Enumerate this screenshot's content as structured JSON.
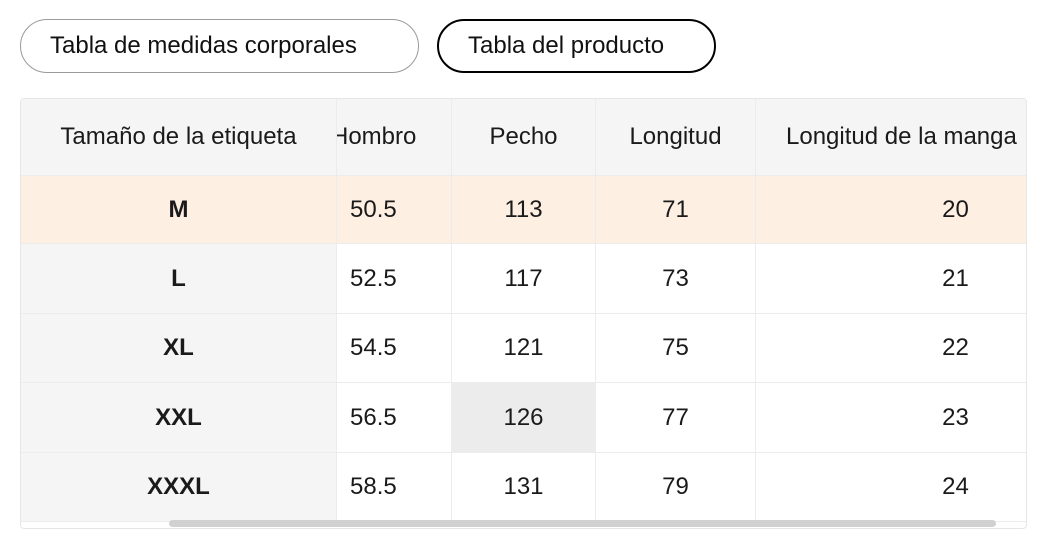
{
  "tabs": {
    "body_chart": "Tabla de medidas corporales",
    "product_chart": "Tabla del producto"
  },
  "table": {
    "headers": {
      "size": "Tamaño de la etiqueta",
      "shoulder": "Hombro",
      "chest": "Pecho",
      "length": "Longitud",
      "sleeve": "Longitud de la manga"
    },
    "rows": [
      {
        "size": "M",
        "shoulder": "50.5",
        "chest": "113",
        "length": "71",
        "sleeve": "20"
      },
      {
        "size": "L",
        "shoulder": "52.5",
        "chest": "117",
        "length": "73",
        "sleeve": "21"
      },
      {
        "size": "XL",
        "shoulder": "54.5",
        "chest": "121",
        "length": "75",
        "sleeve": "22"
      },
      {
        "size": "XXL",
        "shoulder": "56.5",
        "chest": "126",
        "length": "77",
        "sleeve": "23"
      },
      {
        "size": "XXXL",
        "shoulder": "58.5",
        "chest": "131",
        "length": "79",
        "sleeve": "24"
      }
    ]
  },
  "colors": {
    "highlight_row": "#fdefe1",
    "header_bg": "#f5f5f5",
    "active_tab_border": "#000000"
  }
}
